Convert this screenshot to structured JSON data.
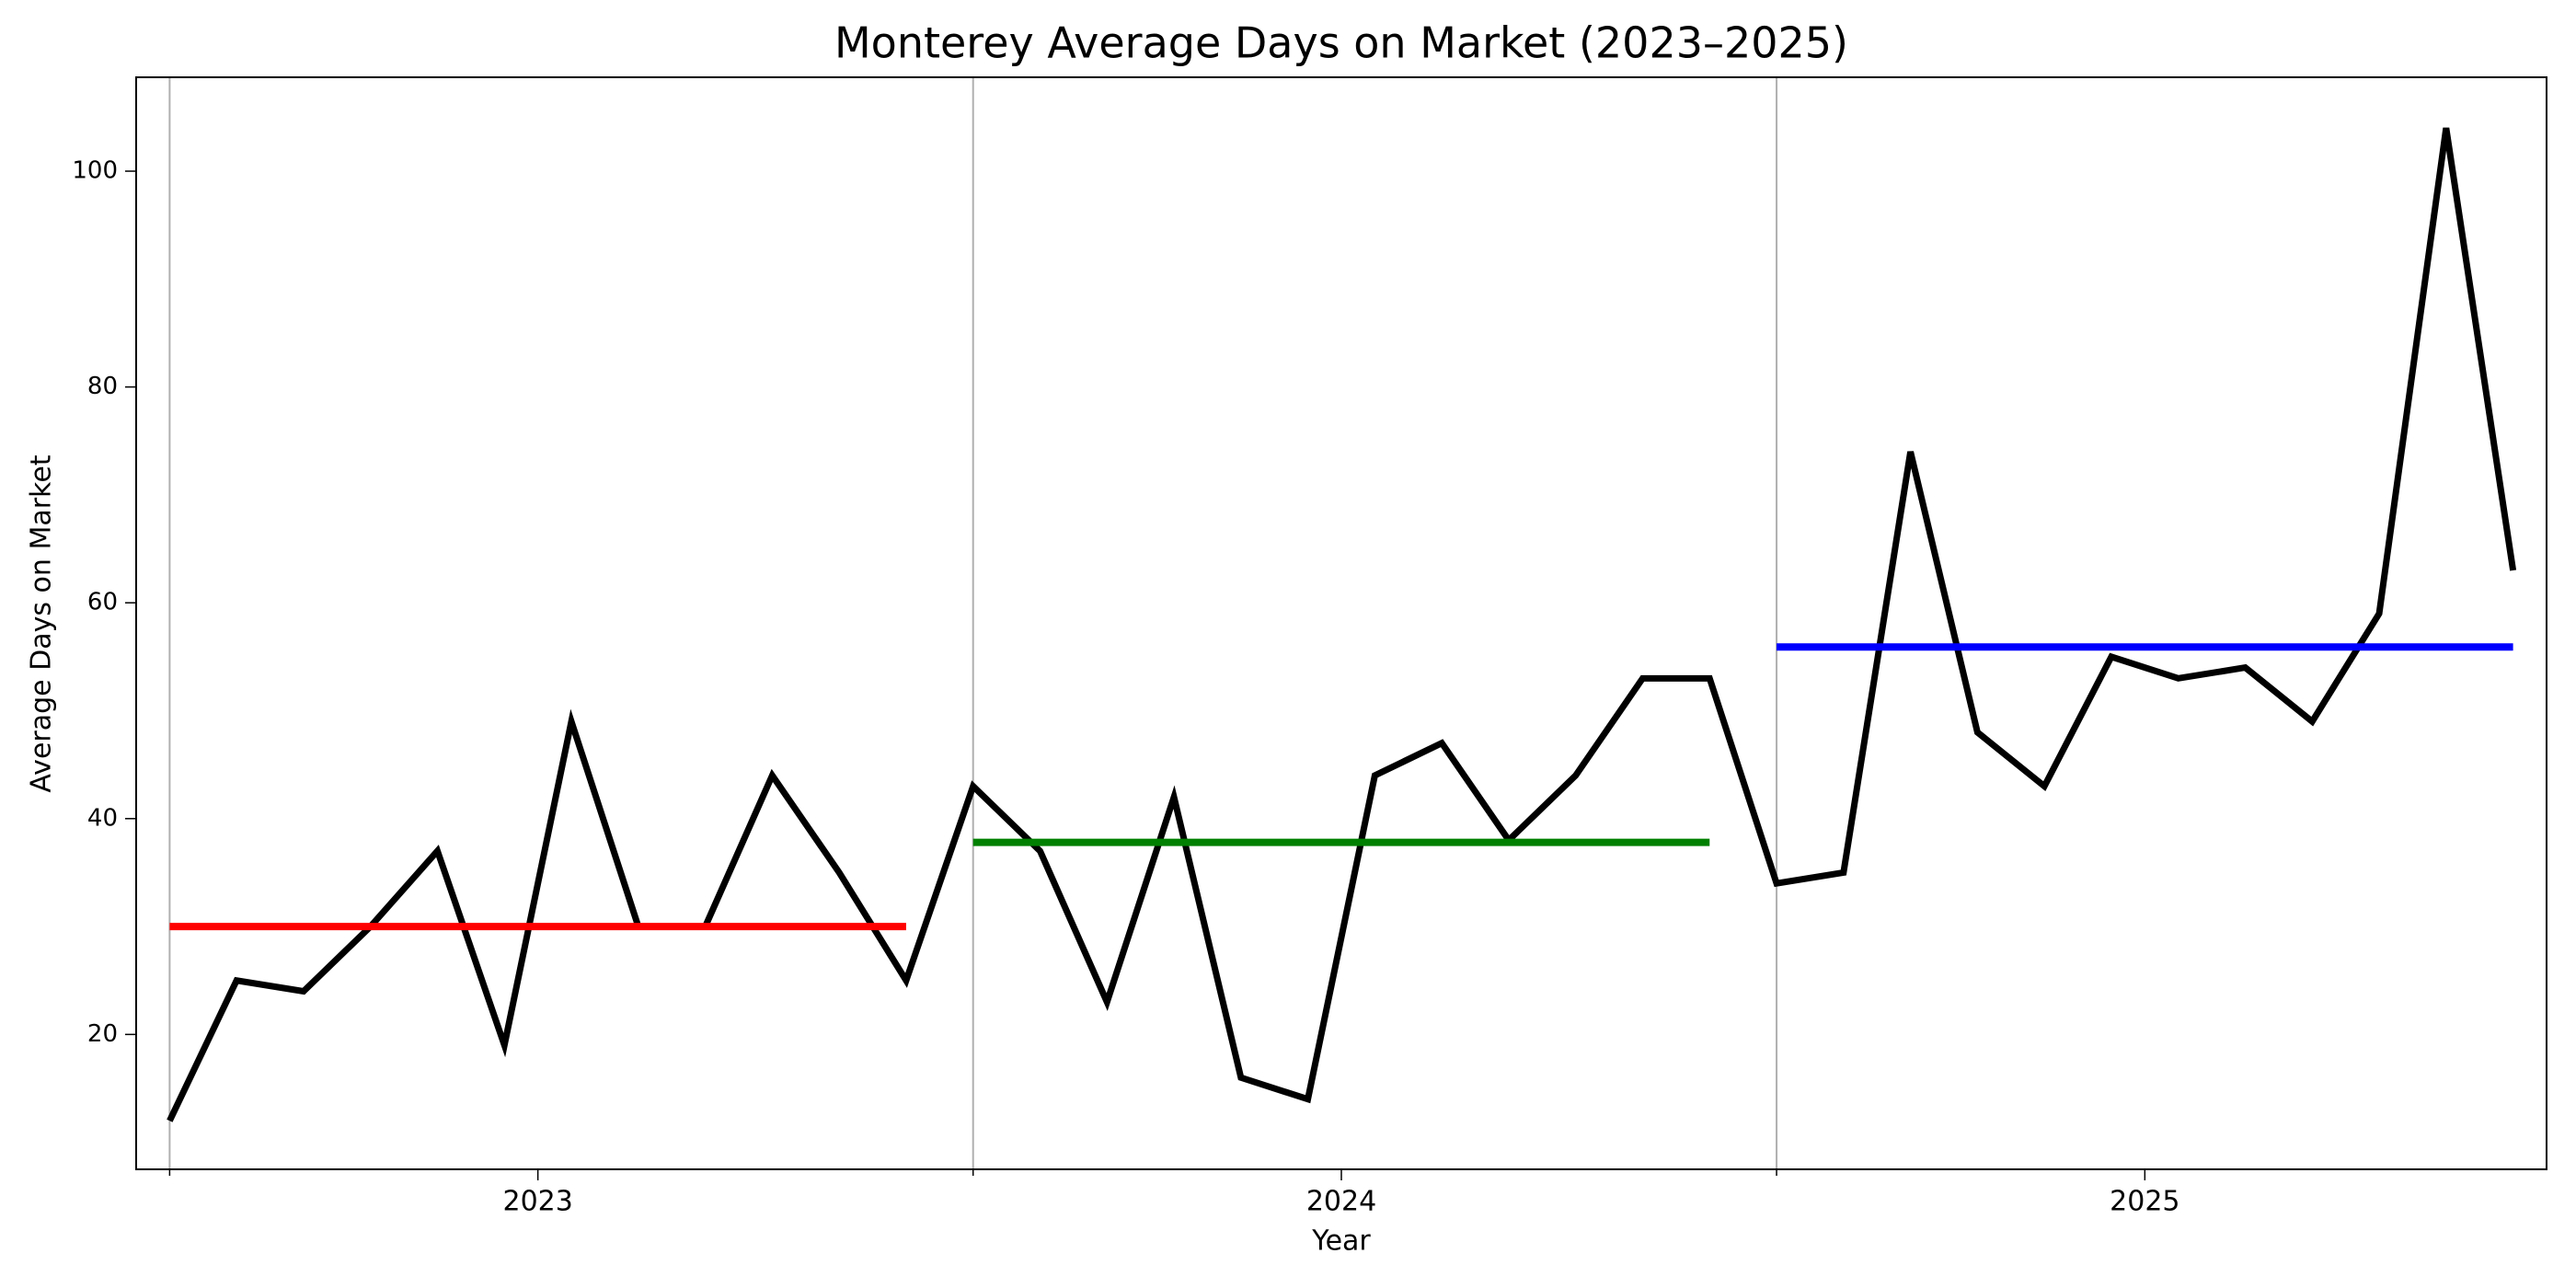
{
  "chart_data": {
    "type": "line",
    "title": "Monterey Average Days on Market (2023–2025)",
    "xlabel": "Year",
    "ylabel": "Average Days on Market",
    "x": [
      0,
      1,
      2,
      3,
      4,
      5,
      6,
      7,
      8,
      9,
      10,
      11,
      12,
      13,
      14,
      15,
      16,
      17,
      18,
      19,
      20,
      21,
      22,
      23,
      24,
      25,
      26,
      27,
      28,
      29,
      30,
      31,
      32,
      33,
      34,
      35
    ],
    "series": [
      {
        "color": "#000000",
        "values": [
          12,
          25,
          24,
          30,
          37,
          19,
          49,
          30,
          30,
          44,
          35,
          25,
          43,
          37,
          23,
          42,
          16,
          14,
          44,
          47,
          38,
          44,
          53,
          53,
          34,
          35,
          74,
          48,
          43,
          55,
          53,
          54,
          49,
          59,
          104,
          63
        ]
      }
    ],
    "means": [
      {
        "y": 30,
        "xmin": 0,
        "xmax": 11,
        "color": "#ff0000"
      },
      {
        "y": 37.8,
        "xmin": 12,
        "xmax": 23,
        "color": "#008000"
      },
      {
        "y": 55.9,
        "xmin": 24,
        "xmax": 35,
        "color": "#0000ff"
      }
    ],
    "xlim": [
      -0.5,
      35.5
    ],
    "xticks": [
      {
        "value": 5.5,
        "label": "2023"
      },
      {
        "value": 17.5,
        "label": "2024"
      },
      {
        "value": 29.5,
        "label": "2025"
      }
    ],
    "xgrid": [
      0,
      12,
      24
    ],
    "ylim": [
      7.5,
      108.7
    ],
    "yticks": [
      20,
      40,
      60,
      80,
      100
    ]
  }
}
